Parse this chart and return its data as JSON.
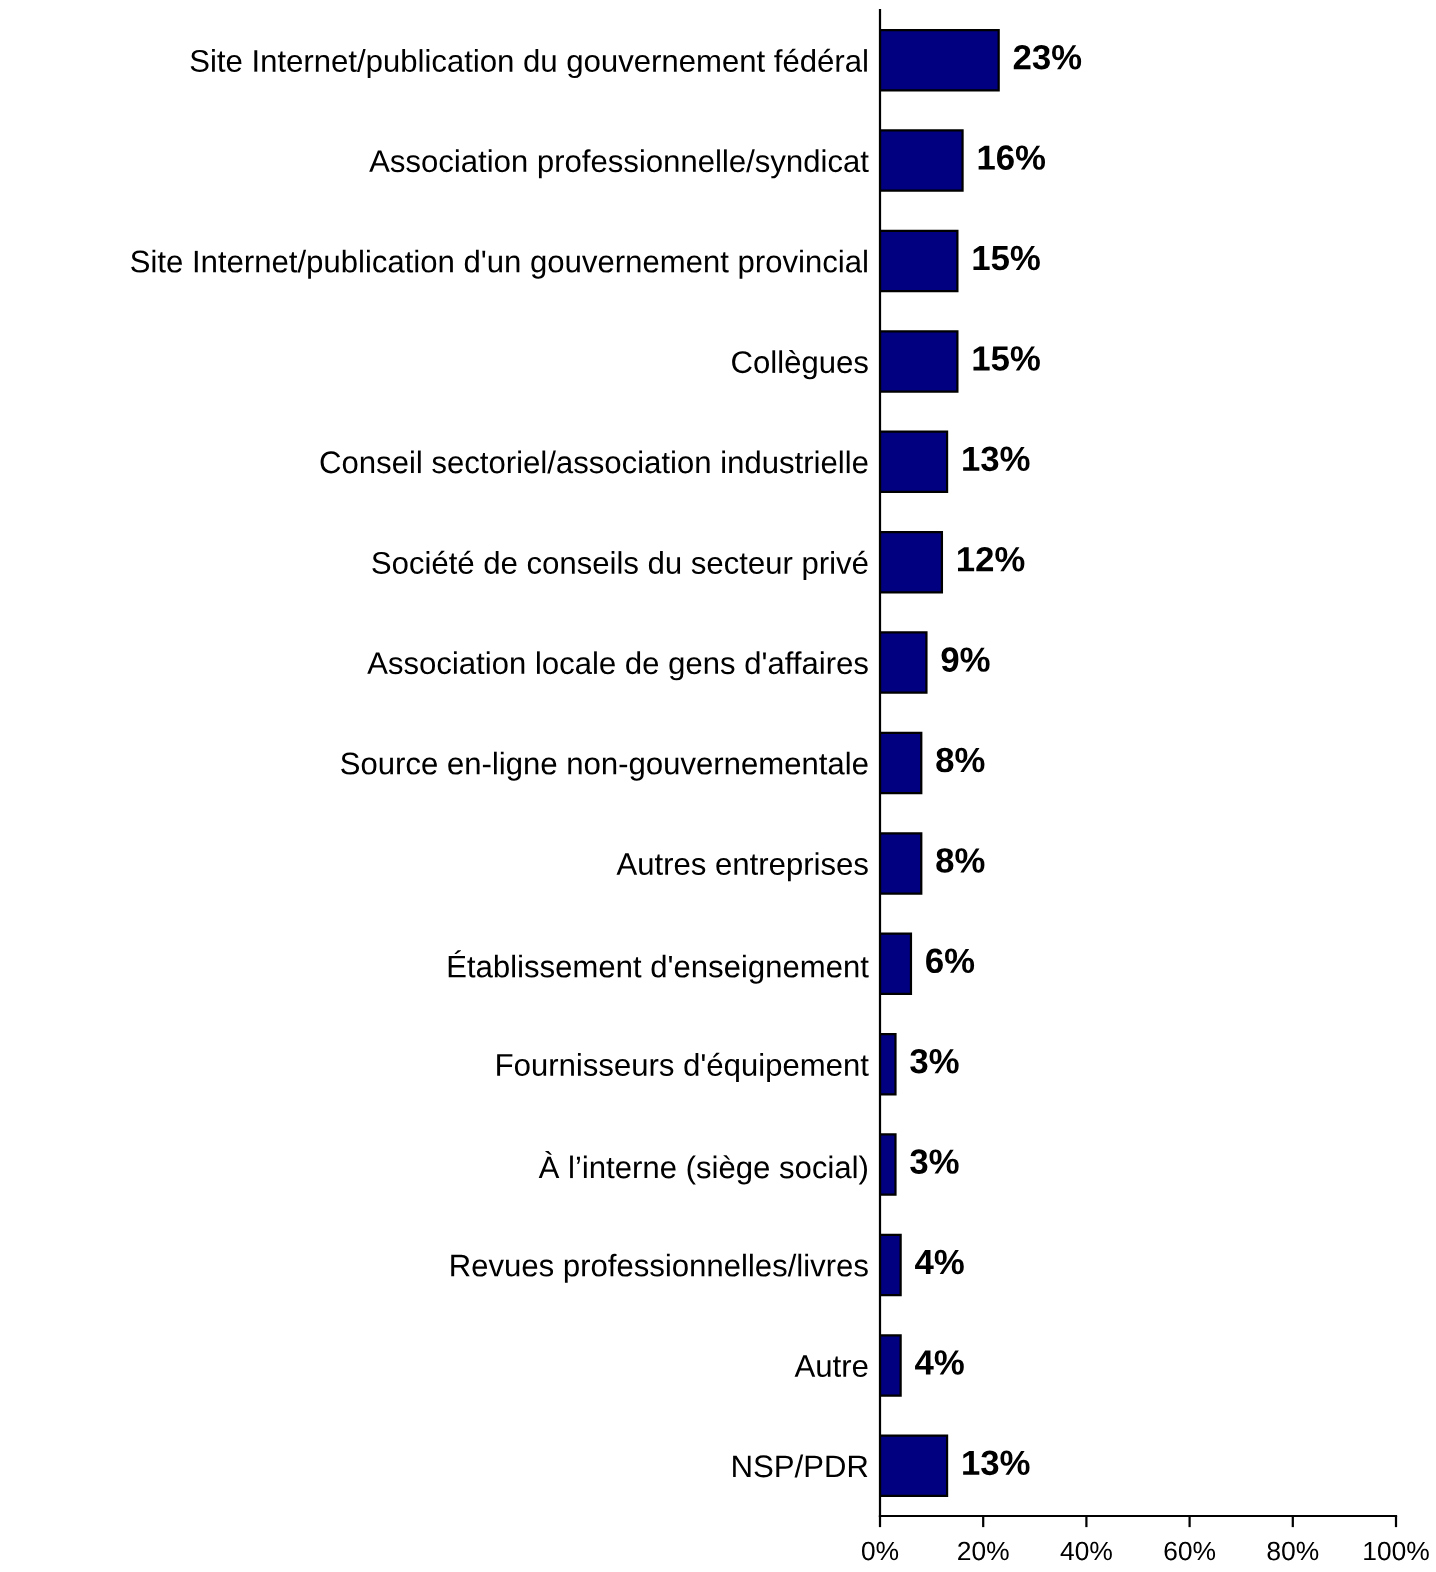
{
  "chart_data": {
    "type": "bar",
    "orientation": "horizontal",
    "categories": [
      "Site Internet/publication du gouvernement fédéral",
      "Association professionnelle/syndicat",
      "Site Internet/publication d'un gouvernement provincial",
      "Collègues",
      "Conseil sectoriel/association industrielle",
      "Société de conseils du secteur privé",
      "Association locale de gens d'affaires",
      "Source en-ligne non-gouvernementale",
      "Autres entreprises",
      "Établissement d'enseignement",
      "Fournisseurs d'équipement",
      "À l’interne (siège social)",
      "Revues professionnelles/livres",
      "Autre",
      "NSP/PDR"
    ],
    "values": [
      23,
      16,
      15,
      15,
      13,
      12,
      9,
      8,
      8,
      6,
      3,
      3,
      4,
      4,
      13
    ],
    "value_labels": [
      "23%",
      "16%",
      "15%",
      "15%",
      "13%",
      "12%",
      "9%",
      "8%",
      "8%",
      "6%",
      "3%",
      "3%",
      "4%",
      "4%",
      "13%"
    ],
    "color": "#000080",
    "xlim": [
      0,
      100
    ],
    "xticks": [
      {
        "value": 0,
        "label": "0%"
      },
      {
        "value": 20,
        "label": "20%"
      },
      {
        "value": 40,
        "label": "40%"
      },
      {
        "value": 60,
        "label": "60%"
      },
      {
        "value": 80,
        "label": "80%"
      },
      {
        "value": 100,
        "label": "100%"
      }
    ],
    "grid": false,
    "legend": false
  }
}
